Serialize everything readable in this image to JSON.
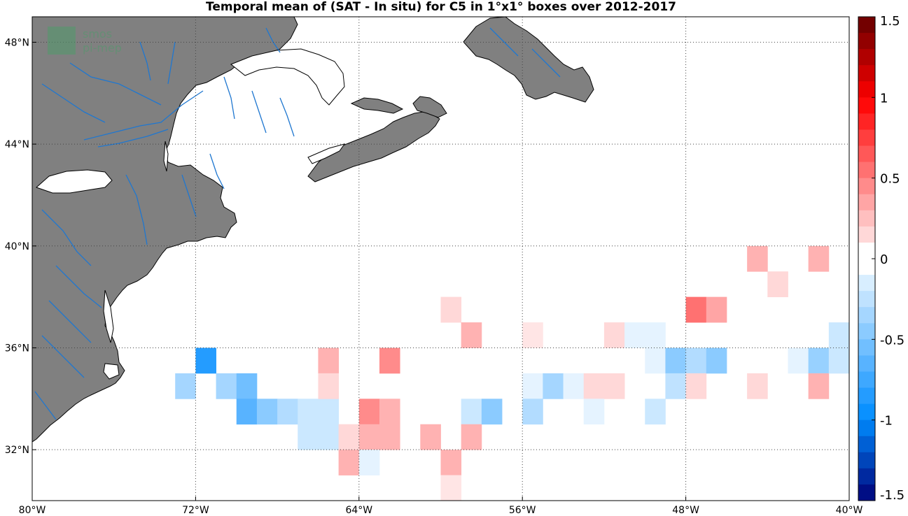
{
  "title": "Temporal mean of (SAT - In situ) for C5 in 1°x1° boxes over 2012-2017",
  "watermark": [
    "smos",
    "pi-mep"
  ],
  "map": {
    "lon_range": [
      -80,
      -40
    ],
    "lat_range": [
      30,
      49
    ],
    "lon_ticks": [
      {
        "value": -80,
        "label": "80°W"
      },
      {
        "value": -72,
        "label": "72°W"
      },
      {
        "value": -64,
        "label": "64°W"
      },
      {
        "value": -56,
        "label": "56°W"
      },
      {
        "value": -48,
        "label": "48°W"
      },
      {
        "value": -40,
        "label": "40°W"
      }
    ],
    "lat_ticks": [
      {
        "value": 48,
        "label": "48°N"
      },
      {
        "value": 44,
        "label": "44°N"
      },
      {
        "value": 40,
        "label": "40°N"
      },
      {
        "value": 36,
        "label": "36°N"
      },
      {
        "value": 32,
        "label": "32°N"
      }
    ],
    "land_color": "#808080",
    "river_color": "#1f77d0",
    "grid": true
  },
  "colorbar": {
    "range": [
      -1.5,
      1.5
    ],
    "ticks": [
      {
        "value": 1.5,
        "label": "1.5"
      },
      {
        "value": 1,
        "label": "1"
      },
      {
        "value": 0.5,
        "label": "0.5"
      },
      {
        "value": 0,
        "label": "0"
      },
      {
        "value": -0.5,
        "label": "-0.5"
      },
      {
        "value": -1,
        "label": "-1"
      },
      {
        "value": -1.5,
        "label": "-1.5"
      }
    ]
  },
  "chart_data": {
    "type": "heatmap",
    "title": "Temporal mean of (SAT - In situ) for C5 in 1°x1° boxes over 2012-2017",
    "xlabel": "",
    "ylabel": "",
    "xlim": [
      -80,
      -40
    ],
    "ylim": [
      30,
      49
    ],
    "cell_size_deg": 1,
    "cells": [
      {
        "lon": -72.5,
        "lat": 34.5,
        "value": -0.35
      },
      {
        "lon": -71.5,
        "lat": 35.5,
        "value": -0.85
      },
      {
        "lon": -70.5,
        "lat": 34.5,
        "value": -0.35
      },
      {
        "lon": -69.5,
        "lat": 34.5,
        "value": -0.55
      },
      {
        "lon": -69.5,
        "lat": 33.5,
        "value": -0.65
      },
      {
        "lon": -68.5,
        "lat": 33.5,
        "value": -0.45
      },
      {
        "lon": -67.5,
        "lat": 33.5,
        "value": -0.3
      },
      {
        "lon": -66.5,
        "lat": 33.5,
        "value": -0.2
      },
      {
        "lon": -65.5,
        "lat": 33.5,
        "value": -0.2
      },
      {
        "lon": -66.5,
        "lat": 32.5,
        "value": -0.2
      },
      {
        "lon": -65.5,
        "lat": 32.5,
        "value": -0.2
      },
      {
        "lon": -65.5,
        "lat": 35.5,
        "value": 0.3
      },
      {
        "lon": -65.5,
        "lat": 34.5,
        "value": 0.15
      },
      {
        "lon": -64.5,
        "lat": 32.5,
        "value": 0.15
      },
      {
        "lon": -64.5,
        "lat": 31.5,
        "value": 0.3
      },
      {
        "lon": -63.5,
        "lat": 33.5,
        "value": 0.45
      },
      {
        "lon": -63.5,
        "lat": 32.5,
        "value": 0.3
      },
      {
        "lon": -63.5,
        "lat": 31.5,
        "value": -0.1
      },
      {
        "lon": -62.5,
        "lat": 35.5,
        "value": 0.45
      },
      {
        "lon": -62.5,
        "lat": 33.5,
        "value": 0.3
      },
      {
        "lon": -62.5,
        "lat": 32.5,
        "value": 0.3
      },
      {
        "lon": -60.5,
        "lat": 32.5,
        "value": 0.3
      },
      {
        "lon": -59.5,
        "lat": 37.5,
        "value": 0.15
      },
      {
        "lon": -59.5,
        "lat": 31.5,
        "value": 0.3
      },
      {
        "lon": -59.5,
        "lat": 30.5,
        "value": 0.1
      },
      {
        "lon": -58.5,
        "lat": 36.5,
        "value": 0.3
      },
      {
        "lon": -58.5,
        "lat": 33.5,
        "value": -0.2
      },
      {
        "lon": -58.5,
        "lat": 32.5,
        "value": 0.3
      },
      {
        "lon": -57.5,
        "lat": 33.5,
        "value": -0.45
      },
      {
        "lon": -55.5,
        "lat": 36.5,
        "value": 0.1
      },
      {
        "lon": -55.5,
        "lat": 34.5,
        "value": -0.1
      },
      {
        "lon": -55.5,
        "lat": 33.5,
        "value": -0.3
      },
      {
        "lon": -54.5,
        "lat": 34.5,
        "value": -0.35
      },
      {
        "lon": -53.5,
        "lat": 34.5,
        "value": -0.1
      },
      {
        "lon": -52.5,
        "lat": 34.5,
        "value": 0.15
      },
      {
        "lon": -52.5,
        "lat": 33.5,
        "value": -0.1
      },
      {
        "lon": -51.5,
        "lat": 34.5,
        "value": 0.15
      },
      {
        "lon": -51.5,
        "lat": 36.5,
        "value": 0.15
      },
      {
        "lon": -50.5,
        "lat": 36.5,
        "value": -0.1
      },
      {
        "lon": -49.5,
        "lat": 36.5,
        "value": -0.1
      },
      {
        "lon": -49.5,
        "lat": 35.5,
        "value": -0.1
      },
      {
        "lon": -49.5,
        "lat": 33.5,
        "value": -0.2
      },
      {
        "lon": -48.5,
        "lat": 35.5,
        "value": -0.45
      },
      {
        "lon": -48.5,
        "lat": 34.5,
        "value": -0.25
      },
      {
        "lon": -47.5,
        "lat": 37.5,
        "value": 0.55
      },
      {
        "lon": -47.5,
        "lat": 35.5,
        "value": -0.3
      },
      {
        "lon": -47.5,
        "lat": 34.5,
        "value": 0.15
      },
      {
        "lon": -46.5,
        "lat": 37.5,
        "value": 0.35
      },
      {
        "lon": -46.5,
        "lat": 35.5,
        "value": -0.45
      },
      {
        "lon": -44.5,
        "lat": 39.5,
        "value": 0.3
      },
      {
        "lon": -44.5,
        "lat": 34.5,
        "value": 0.15
      },
      {
        "lon": -43.5,
        "lat": 38.5,
        "value": 0.15
      },
      {
        "lon": -42.5,
        "lat": 35.5,
        "value": -0.1
      },
      {
        "lon": -41.5,
        "lat": 39.5,
        "value": 0.3
      },
      {
        "lon": -41.5,
        "lat": 35.5,
        "value": -0.4
      },
      {
        "lon": -41.5,
        "lat": 34.5,
        "value": 0.3
      },
      {
        "lon": -40.5,
        "lat": 36.5,
        "value": -0.2
      },
      {
        "lon": -40.5,
        "lat": 35.5,
        "value": -0.2
      }
    ]
  }
}
